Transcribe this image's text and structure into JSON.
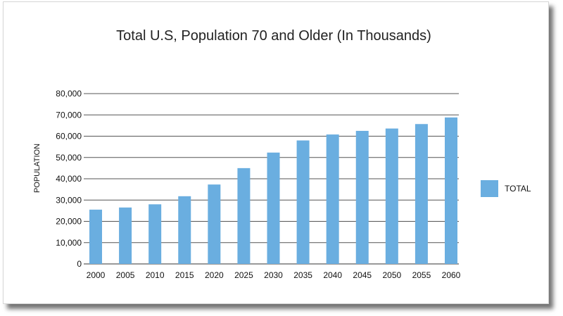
{
  "chart_data": {
    "type": "bar",
    "title": "Total U.S, Population 70 and Older (In Thousands)",
    "xlabel": "",
    "ylabel": "POPULATION",
    "categories": [
      "2000",
      "2005",
      "2010",
      "2015",
      "2020",
      "2025",
      "2030",
      "2035",
      "2040",
      "2045",
      "2050",
      "2055",
      "2060"
    ],
    "series": [
      {
        "name": "TOTAL",
        "color": "#6aaee0",
        "values": [
          25500,
          26500,
          28000,
          31800,
          37300,
          45000,
          52300,
          58000,
          60800,
          62500,
          63600,
          65700,
          68800
        ]
      }
    ],
    "ylim": [
      0,
      80000
    ],
    "yticks": [
      "0",
      "10,000",
      "20,000",
      "30,000",
      "40,000",
      "50,000",
      "60,000",
      "70,000",
      "80,000"
    ],
    "grid": true,
    "legend_position": "right"
  }
}
